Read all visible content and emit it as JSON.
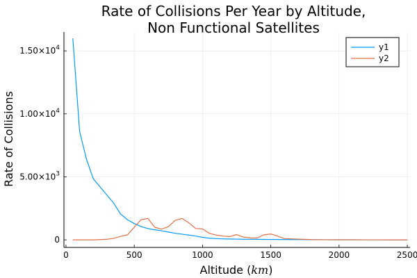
{
  "chart_data": {
    "type": "line",
    "title": [
      "Rate of Collisions Per Year by Altitude,",
      "Non Functional Satellites"
    ],
    "xlabel": "Altitude",
    "xlabel_unit": "km",
    "ylabel": "Rate of Collisions",
    "xlim": [
      -15,
      2520
    ],
    "ylim": [
      -600,
      16500
    ],
    "xticks": [
      {
        "value": 0,
        "label": "0"
      },
      {
        "value": 500,
        "label": "500"
      },
      {
        "value": 1000,
        "label": "1000"
      },
      {
        "value": 1500,
        "label": "1500"
      },
      {
        "value": 2000,
        "label": "2000"
      },
      {
        "value": 2500,
        "label": "2500"
      }
    ],
    "yticks": [
      {
        "value": 0,
        "label": "0",
        "exp": ""
      },
      {
        "value": 5000,
        "label": "5.00×10",
        "exp": "3"
      },
      {
        "value": 10000,
        "label": "1.00×10",
        "exp": "4"
      },
      {
        "value": 15000,
        "label": "1.50×10",
        "exp": "4"
      }
    ],
    "grid": true,
    "legend_position": "top-right",
    "series": [
      {
        "name": "y1",
        "color": "#009AFA",
        "x": [
          50,
          100,
          150,
          200,
          250,
          300,
          350,
          400,
          450,
          500,
          550,
          600,
          650,
          700,
          750,
          800,
          850,
          900,
          950,
          1000,
          1050,
          1100,
          1150,
          1200,
          1250,
          1300,
          1350,
          1400,
          1450,
          1500,
          1550,
          1600,
          1650,
          1700,
          1750,
          1800,
          1850,
          1900,
          1950,
          2000,
          2100,
          2200,
          2300,
          2400,
          2500
        ],
        "y": [
          16000,
          8600,
          6400,
          4850,
          4200,
          3550,
          2900,
          2050,
          1600,
          1300,
          1050,
          900,
          800,
          720,
          620,
          520,
          450,
          380,
          300,
          200,
          130,
          100,
          80,
          70,
          60,
          50,
          45,
          40,
          35,
          30,
          28,
          25,
          22,
          20,
          18,
          15,
          12,
          10,
          8,
          6,
          5,
          4,
          3,
          2,
          1
        ]
      },
      {
        "name": "y2",
        "color": "#E26F46",
        "x": [
          50,
          100,
          150,
          200,
          250,
          300,
          350,
          400,
          450,
          500,
          550,
          600,
          650,
          700,
          750,
          800,
          850,
          900,
          950,
          1000,
          1050,
          1100,
          1150,
          1200,
          1250,
          1300,
          1350,
          1400,
          1450,
          1500,
          1550,
          1600,
          1650,
          1700,
          1750,
          1800,
          1850,
          1900,
          1950,
          2000,
          2100,
          2200,
          2300,
          2400,
          2500
        ],
        "y": [
          0,
          0,
          0,
          0,
          20,
          50,
          120,
          280,
          400,
          1000,
          1600,
          1700,
          1000,
          850,
          1050,
          1550,
          1700,
          1350,
          900,
          870,
          520,
          380,
          300,
          260,
          420,
          220,
          160,
          150,
          400,
          470,
          300,
          100,
          80,
          60,
          40,
          20,
          15,
          10,
          8,
          6,
          5,
          4,
          3,
          2,
          1
        ]
      }
    ]
  }
}
